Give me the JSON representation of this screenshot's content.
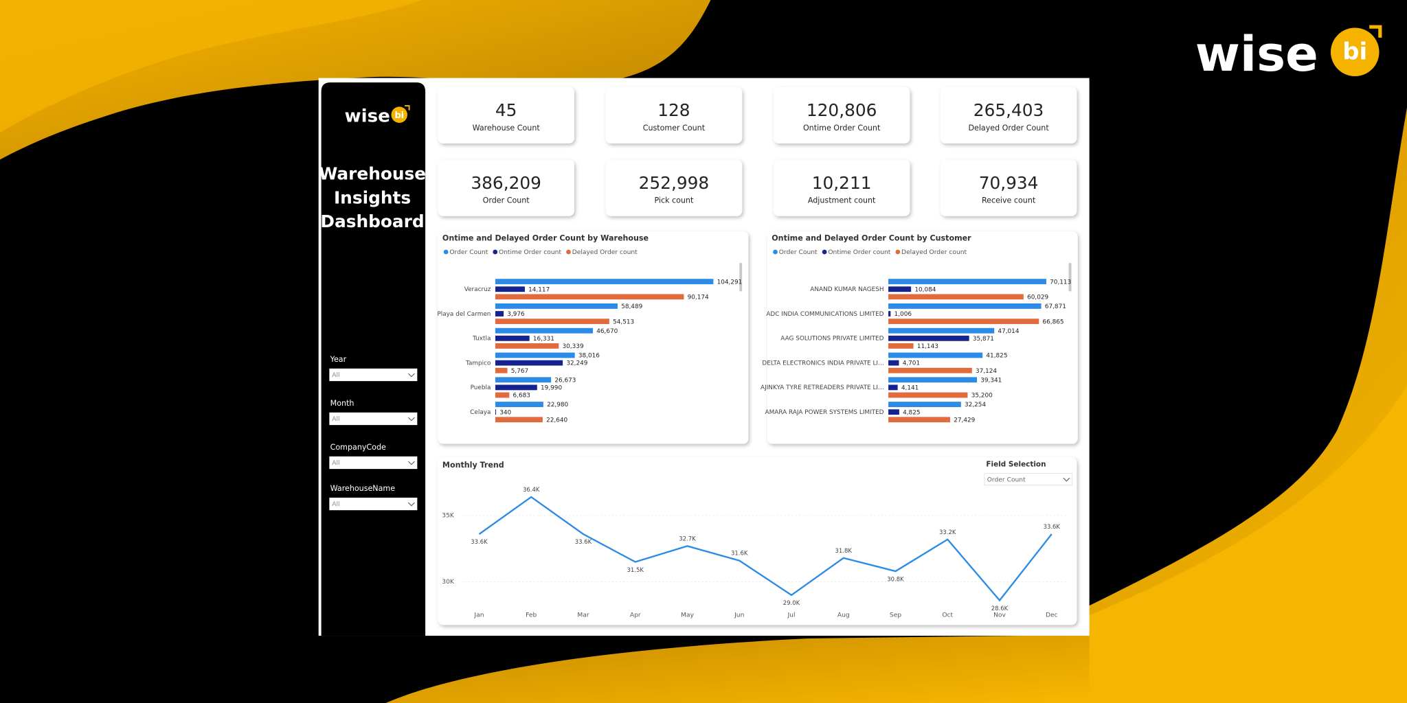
{
  "brand": {
    "wordmark": "wise",
    "mark": "bi"
  },
  "sidebar": {
    "title": [
      "Warehouse",
      "Insights",
      "Dashboard"
    ],
    "filters": [
      {
        "label": "Year",
        "value": "All"
      },
      {
        "label": "Month",
        "value": "All"
      },
      {
        "label": "CompanyCode",
        "value": "All"
      },
      {
        "label": "WarehouseName",
        "value": "All"
      }
    ]
  },
  "kpis": [
    {
      "value": "45",
      "label": "Warehouse Count"
    },
    {
      "value": "128",
      "label": "Customer Count"
    },
    {
      "value": "120,806",
      "label": "Ontime Order Count"
    },
    {
      "value": "265,403",
      "label": "Delayed Order Count"
    },
    {
      "value": "386,209",
      "label": "Order Count"
    },
    {
      "value": "252,998",
      "label": "Pick count"
    },
    {
      "value": "10,211",
      "label": "Adjustment count"
    },
    {
      "value": "70,934",
      "label": "Receive count"
    }
  ],
  "field_selection": {
    "label": "Field Selection",
    "value": "Order Count"
  },
  "chart_data": [
    {
      "type": "bar",
      "orientation": "horizontal",
      "title": "Ontime and Delayed Order Count by Warehouse",
      "categories": [
        "Veracruz",
        "Playa del Carmen",
        "Tuxtla",
        "Tampico",
        "Puebla",
        "Celaya"
      ],
      "series": [
        {
          "name": "Order Count",
          "color": "#2b8be6",
          "values": [
            104291,
            58489,
            46670,
            38016,
            26673,
            22980
          ],
          "value_labels": [
            "104,291",
            "58,489",
            "46,670",
            "38,016",
            "26,673",
            "22,980"
          ]
        },
        {
          "name": "Ontime Order count",
          "color": "#14238f",
          "values": [
            14117,
            3976,
            16331,
            32249,
            19990,
            340
          ],
          "value_labels": [
            "14,117",
            "3,976",
            "16,331",
            "32,249",
            "19,990",
            "340"
          ]
        },
        {
          "name": "Delayed Order count",
          "color": "#e26b3d",
          "values": [
            90174,
            54513,
            30339,
            5767,
            6683,
            22640
          ],
          "value_labels": [
            "90,174",
            "54,513",
            "30,339",
            "5,767",
            "6,683",
            "22,640"
          ]
        }
      ]
    },
    {
      "type": "bar",
      "orientation": "horizontal",
      "title": "Ontime and Delayed Order Count by Customer",
      "categories": [
        "ANAND KUMAR NAGESH",
        "ADC INDIA COMMUNICATIONS LIMITED",
        "AAG SOLUTIONS PRIVATE LIMITED",
        "DELTA ELECTRONICS INDIA PRIVATE LI...",
        "AJINKYA TYRE RETREADERS PRIVATE LI...",
        "AMARA RAJA POWER SYSTEMS LIMITED"
      ],
      "series": [
        {
          "name": "Order Count",
          "color": "#2b8be6",
          "values": [
            70113,
            67871,
            47014,
            41825,
            39341,
            32254
          ],
          "value_labels": [
            "70,113",
            "67,871",
            "47,014",
            "41,825",
            "39,341",
            "32,254"
          ]
        },
        {
          "name": "Ontime Order count",
          "color": "#14238f",
          "values": [
            10084,
            1006,
            35871,
            4701,
            4141,
            4825
          ],
          "value_labels": [
            "10,084",
            "1,006",
            "35,871",
            "4,701",
            "4,141",
            "4,825"
          ]
        },
        {
          "name": "Delayed Order count",
          "color": "#e26b3d",
          "values": [
            60029,
            66865,
            11143,
            37124,
            35200,
            27429
          ],
          "value_labels": [
            "60,029",
            "66,865",
            "11,143",
            "37,124",
            "35,200",
            "27,429"
          ]
        }
      ]
    },
    {
      "type": "line",
      "title": "Monthly Trend",
      "categories": [
        "Jan",
        "Feb",
        "Mar",
        "Apr",
        "May",
        "Jun",
        "Jul",
        "Aug",
        "Sep",
        "Oct",
        "Nov",
        "Dec"
      ],
      "values": [
        33600,
        36400,
        33600,
        31500,
        32700,
        31600,
        29000,
        31800,
        30800,
        33200,
        28600,
        33600
      ],
      "value_labels": [
        "33.6K",
        "36.4K",
        "33.6K",
        "31.5K",
        "32.7K",
        "31.6K",
        "29.0K",
        "31.8K",
        "30.8K",
        "33.2K",
        "28.6K",
        "33.6K"
      ],
      "color": "#2b8be6",
      "ylim": [
        28300,
        37500
      ],
      "yticks": [
        {
          "value": 30000,
          "label": "30K"
        },
        {
          "value": 35000,
          "label": "35K"
        }
      ],
      "grid": true
    }
  ]
}
